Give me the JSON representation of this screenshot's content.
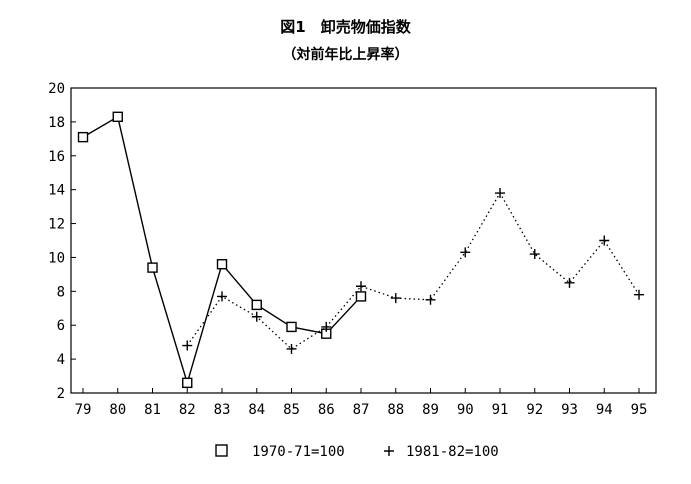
{
  "chart_data": {
    "type": "line",
    "title": "図1　卸売物価指数",
    "subtitle": "（対前年比上昇率）",
    "categories": [
      "79",
      "80",
      "81",
      "82",
      "83",
      "84",
      "85",
      "86",
      "87",
      "88",
      "89",
      "90",
      "91",
      "92",
      "93",
      "94",
      "95"
    ],
    "ylim": [
      2,
      20
    ],
    "yticks": [
      2,
      4,
      6,
      8,
      10,
      12,
      14,
      16,
      18,
      20
    ],
    "grid": false,
    "legend_position": "bottom",
    "series": [
      {
        "name": "1970-71=100",
        "marker": "square",
        "line": "solid",
        "values": [
          17.1,
          18.3,
          9.4,
          2.6,
          9.6,
          7.2,
          5.9,
          5.5,
          7.7,
          null,
          null,
          null,
          null,
          null,
          null,
          null,
          null
        ]
      },
      {
        "name": "1981-82=100",
        "marker": "plus",
        "line": "dotted",
        "values": [
          null,
          null,
          null,
          4.8,
          7.7,
          6.5,
          4.6,
          5.9,
          8.3,
          7.6,
          7.5,
          10.3,
          13.8,
          10.2,
          8.5,
          11.0,
          7.8
        ]
      }
    ]
  }
}
